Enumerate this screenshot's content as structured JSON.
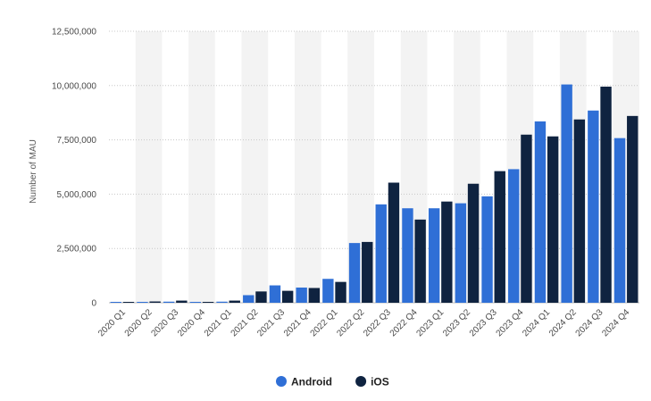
{
  "chart_data": {
    "type": "bar",
    "ylabel": "Number of MAU",
    "ylim": [
      0,
      12500000
    ],
    "y_ticks": [
      0,
      2500000,
      5000000,
      7500000,
      10000000,
      12500000
    ],
    "y_tick_labels": [
      "0",
      "2,500,000",
      "5,000,000",
      "7,500,000",
      "10,000,000",
      "12,500,000"
    ],
    "grid": true,
    "legend_position": "bottom-center",
    "categories": [
      "2020 Q1",
      "2020 Q2",
      "2020 Q3",
      "2020 Q4",
      "2021 Q1",
      "2021 Q2",
      "2021 Q3",
      "2021 Q4",
      "2022 Q1",
      "2022 Q2",
      "2022 Q3",
      "2022 Q4",
      "2023 Q1",
      "2023 Q2",
      "2023 Q3",
      "2023 Q4",
      "2024 Q1",
      "2024 Q2",
      "2024 Q3",
      "2024 Q4"
    ],
    "series": [
      {
        "name": "Android",
        "color": "#2f6fd6",
        "values": [
          10000,
          40000,
          50000,
          10000,
          50000,
          350000,
          800000,
          700000,
          1100000,
          2750000,
          4530000,
          4350000,
          4350000,
          4580000,
          4900000,
          6150000,
          8350000,
          10050000,
          8850000,
          7580000
        ]
      },
      {
        "name": "iOS",
        "color": "#0f2340",
        "values": [
          10000,
          60000,
          100000,
          10000,
          100000,
          520000,
          550000,
          680000,
          960000,
          2800000,
          5530000,
          3830000,
          4660000,
          5480000,
          6060000,
          7740000,
          7660000,
          8440000,
          9950000,
          8600000
        ]
      }
    ]
  }
}
